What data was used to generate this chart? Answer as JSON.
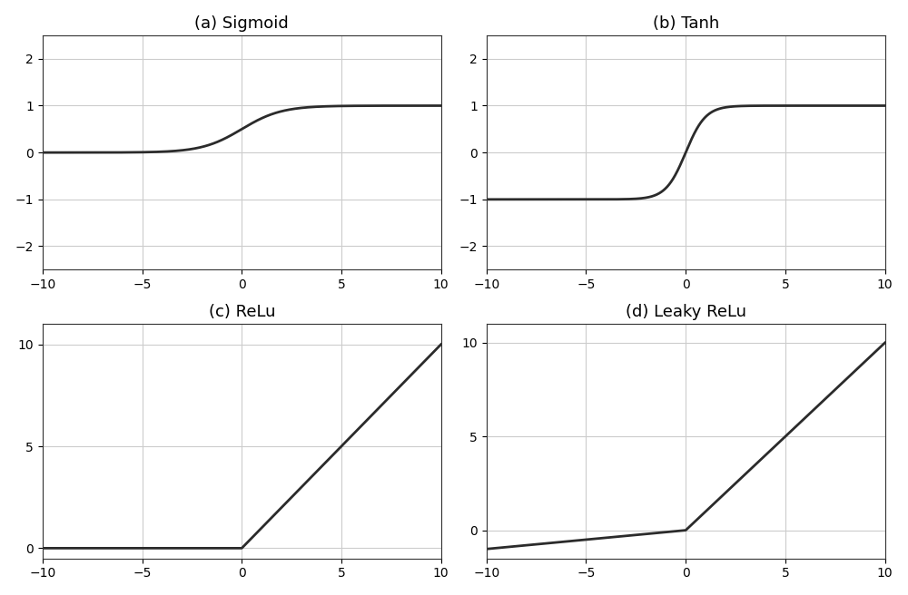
{
  "titles": [
    "(a) Sigmoid",
    "(b) Tanh",
    "(c) ReLu",
    "(d) Leaky ReLu"
  ],
  "x_range": [
    -10,
    10
  ],
  "x_ticks": [
    -10,
    -5,
    0,
    5,
    10
  ],
  "sigmoid_ylim": [
    -2.5,
    2.5
  ],
  "sigmoid_yticks": [
    -2,
    -1,
    0,
    1,
    2
  ],
  "tanh_ylim": [
    -2.5,
    2.5
  ],
  "tanh_yticks": [
    -2,
    -1,
    0,
    1,
    2
  ],
  "relu_ylim": [
    -0.5,
    11.0
  ],
  "relu_yticks": [
    0,
    5,
    10
  ],
  "leaky_ylim": [
    -1.5,
    11.0
  ],
  "leaky_yticks": [
    0,
    5,
    10
  ],
  "line_color": "#2b2b2b",
  "line_width": 2.0,
  "grid_color": "#cccccc",
  "grid_linewidth": 0.8,
  "background_color": "#ffffff",
  "leaky_alpha": 0.1,
  "title_fontsize": 13,
  "figsize": [
    10.0,
    6.56
  ],
  "dpi": 100
}
